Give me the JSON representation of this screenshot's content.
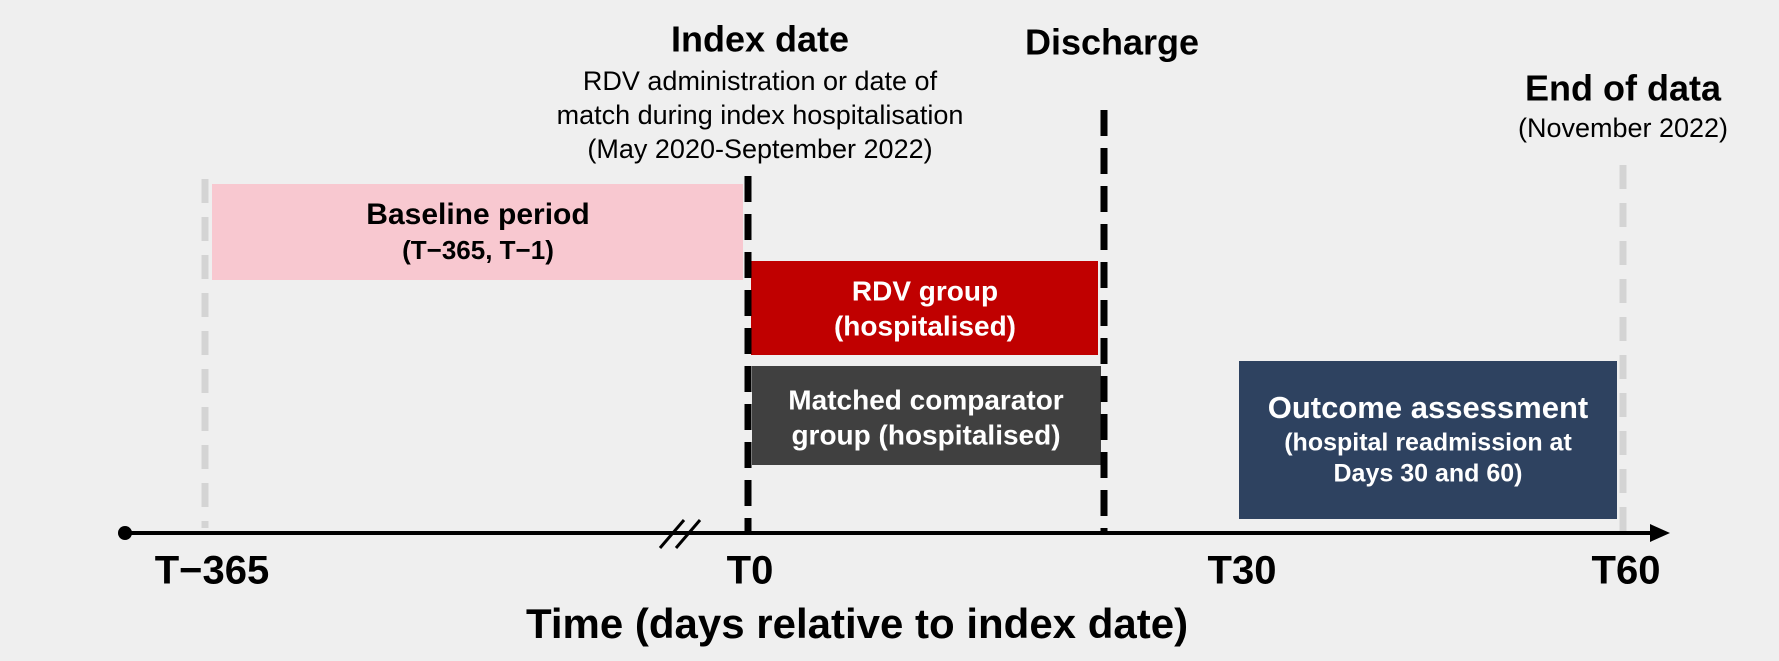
{
  "index_date": {
    "title": "Index date",
    "lines": [
      "RDV administration or date of",
      "match during index hospitalisation",
      "(May 2020-September 2022)"
    ]
  },
  "discharge": {
    "title": "Discharge"
  },
  "end_of_data": {
    "title": "End of data",
    "subtitle": "(November 2022)"
  },
  "baseline": {
    "title": "Baseline period",
    "subtitle": "(T−365, T−1)"
  },
  "rdv_group": {
    "lines": [
      "RDV group",
      "(hospitalised)"
    ]
  },
  "comparator_group": {
    "lines": [
      "Matched comparator",
      "group (hospitalised)"
    ]
  },
  "outcome": {
    "title": "Outcome assessment",
    "lines": [
      "(hospital readmission at",
      "Days 30 and 60)"
    ]
  },
  "axis": {
    "ticks": [
      "T−365",
      "T0",
      "T30",
      "T60"
    ],
    "title": "Time (days relative to index date)"
  }
}
